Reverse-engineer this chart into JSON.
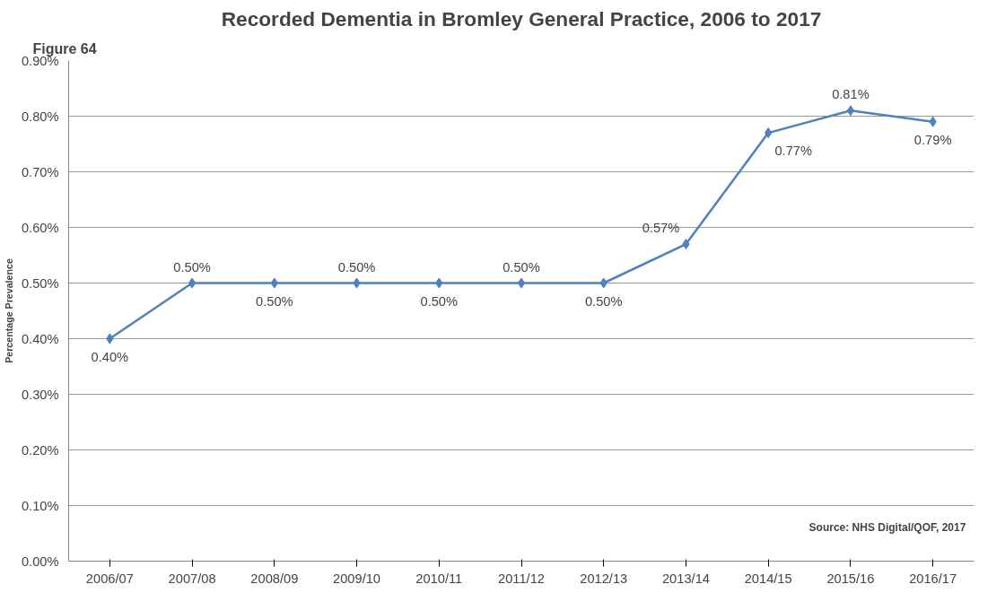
{
  "chart_data": {
    "type": "line",
    "title": "Recorded Dementia in Bromley General Practice, 2006 to 2017",
    "ylabel": "Percentage Prevalence",
    "annotations": [
      "Figure 64",
      "Source: NHS Digital/QOF, 2017"
    ],
    "categories": [
      "2006/07",
      "2007/08",
      "2008/09",
      "2009/10",
      "2010/11",
      "2011/12",
      "2012/13",
      "2013/14",
      "2014/15",
      "2015/16",
      "2016/17"
    ],
    "series": [
      {
        "color": "#4f81bd",
        "values": [
          0.4,
          0.5,
          0.5,
          0.5,
          0.5,
          0.5,
          0.5,
          0.57,
          0.77,
          0.81,
          0.79
        ],
        "value_labels": [
          "0.40%",
          "0.50%",
          "0.50%",
          "0.50%",
          "0.50%",
          "0.50%",
          "0.50%",
          "0.57%",
          "0.77%",
          "0.81%",
          "0.79%"
        ]
      }
    ],
    "ylim": [
      0,
      0.9
    ],
    "yticks": [
      {
        "value": 0,
        "label": "0.00%"
      },
      {
        "value": 0.1,
        "label": "0.10%"
      },
      {
        "value": 0.2,
        "label": "0.20%"
      },
      {
        "value": 0.3,
        "label": "0.30%"
      },
      {
        "value": 0.4,
        "label": "0.40%"
      },
      {
        "value": 0.5,
        "label": "0.50%"
      },
      {
        "value": 0.6,
        "label": "0.60%"
      },
      {
        "value": 0.7,
        "label": "0.70%"
      },
      {
        "value": 0.8,
        "label": "0.80%"
      },
      {
        "value": 0.9,
        "label": "0.90%"
      }
    ],
    "grid": "y",
    "marker": "diamond",
    "line_style": "solid"
  }
}
